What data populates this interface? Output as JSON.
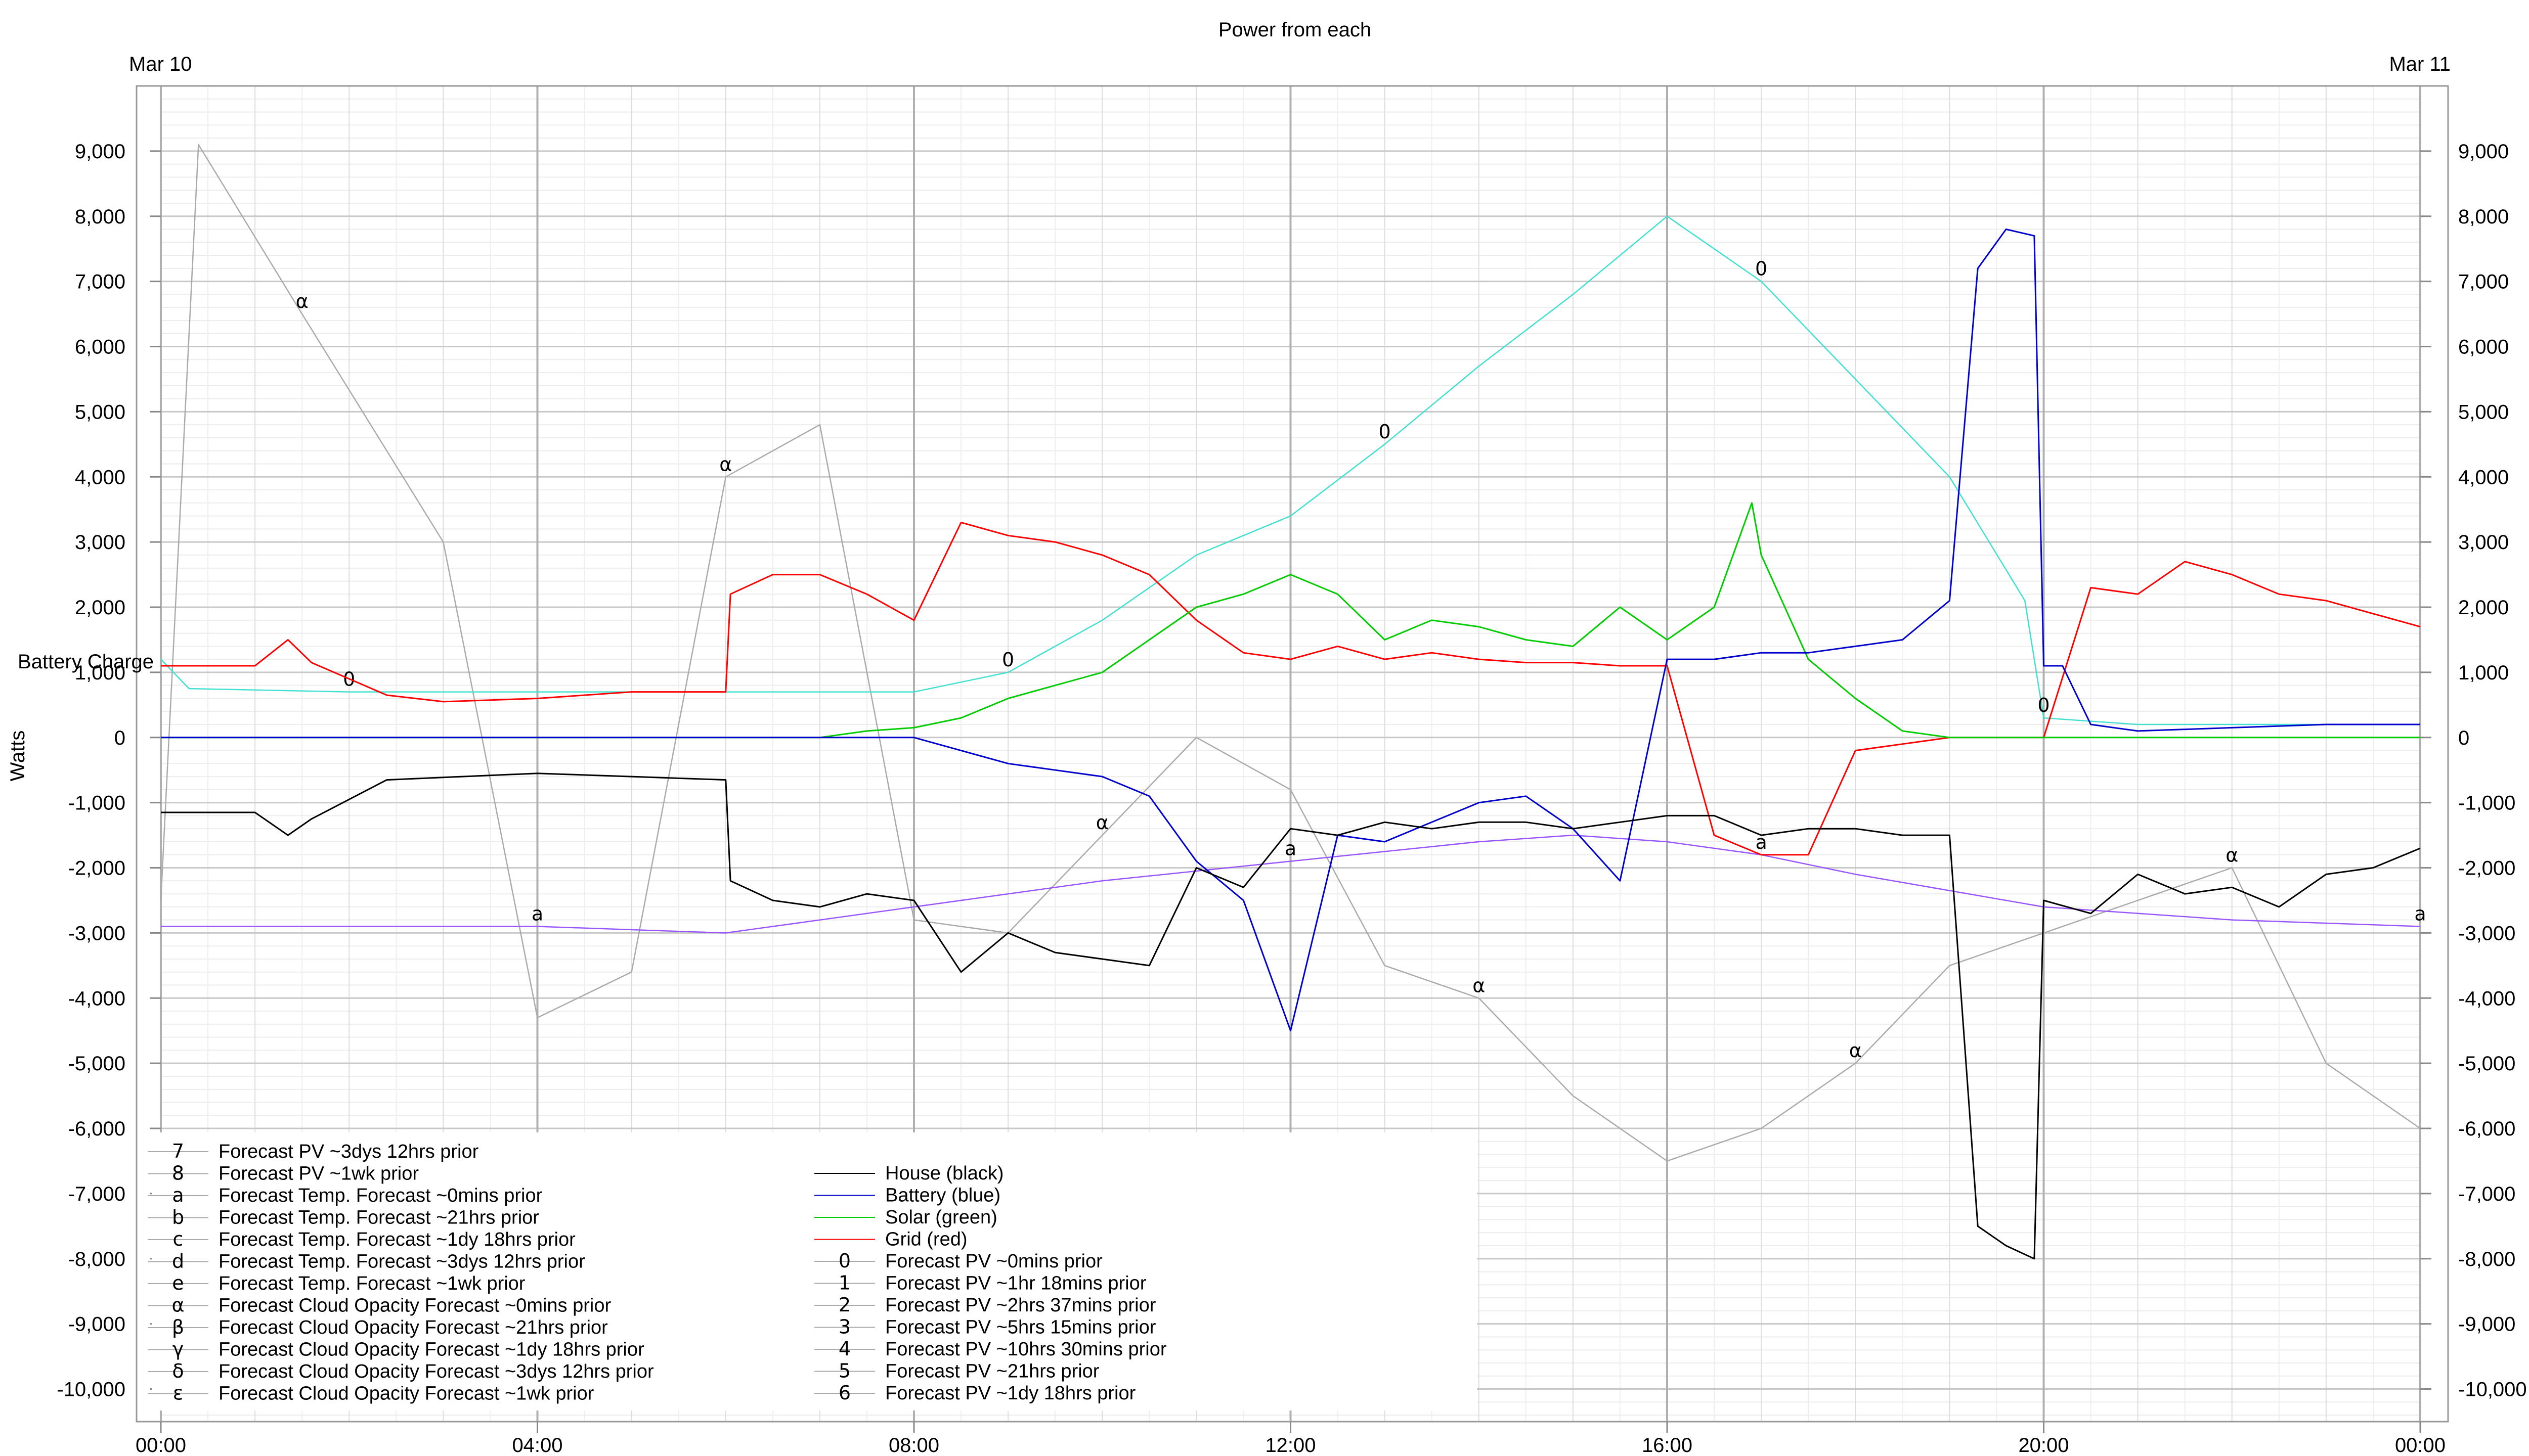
{
  "chart_data": {
    "type": "line",
    "title": "Power from each",
    "ylabel": "Watts",
    "secondary_ylabel": "Battery Charge",
    "date_labels": {
      "start": "Mar 10",
      "end": "Mar 11"
    },
    "xlim": [
      0,
      24
    ],
    "ylim": [
      -10500,
      10000
    ],
    "grid": true,
    "legend_placement": "bottom-left",
    "x_ticks": [
      "00:00",
      "04:00",
      "08:00",
      "12:00",
      "16:00",
      "20:00",
      "00:00"
    ],
    "y_ticks": [
      "9,000",
      "8,000",
      "7,000",
      "6,000",
      "5,000",
      "4,000",
      "3,000",
      "2,000",
      "1,000",
      "0",
      "-1,000",
      "-2,000",
      "-3,000",
      "-4,000",
      "-5,000",
      "-6,000",
      "-7,000",
      "-8,000",
      "-9,000",
      "-10,000"
    ],
    "series": [
      {
        "name": "House (black)",
        "color": "#000000",
        "x": [
          0,
          1,
          1.35,
          1.6,
          2.4,
          3.2,
          4,
          5,
          6,
          6.05,
          6.5,
          7,
          7.5,
          8,
          8.5,
          9,
          9.5,
          10,
          10.5,
          11,
          11.5,
          12,
          12.5,
          13,
          13.5,
          14,
          14.5,
          15,
          15.5,
          16,
          16.5,
          17,
          17.5,
          18,
          18.5,
          19,
          19.3,
          19.6,
          19.9,
          20,
          20.5,
          21,
          21.5,
          22,
          22.5,
          23,
          23.5,
          24
        ],
        "y": [
          -1150,
          -1150,
          -1500,
          -1250,
          -650,
          -600,
          -550,
          -600,
          -650,
          -2200,
          -2500,
          -2600,
          -2400,
          -2500,
          -3600,
          -3000,
          -3300,
          -3400,
          -3500,
          -2000,
          -2300,
          -1400,
          -1500,
          -1300,
          -1400,
          -1300,
          -1300,
          -1400,
          -1300,
          -1200,
          -1200,
          -1500,
          -1400,
          -1400,
          -1500,
          -1500,
          -7500,
          -7800,
          -8000,
          -2500,
          -2700,
          -2100,
          -2400,
          -2300,
          -2600,
          -2100,
          -2000,
          -1700
        ]
      },
      {
        "name": "Battery (blue)",
        "color": "#0000cc",
        "x": [
          0,
          7,
          8,
          8.5,
          9,
          9.5,
          10,
          10.5,
          11,
          11.5,
          12,
          12.5,
          13,
          13.5,
          14,
          14.5,
          15,
          15.5,
          16,
          16.5,
          17,
          17.5,
          18,
          18.5,
          19,
          19.3,
          19.6,
          19.9,
          20,
          20.2,
          20.5,
          21,
          22,
          23,
          24
        ],
        "y": [
          0,
          0,
          0,
          -200,
          -400,
          -500,
          -600,
          -900,
          -1900,
          -2500,
          -4500,
          -1500,
          -1600,
          -1300,
          -1000,
          -900,
          -1400,
          -2200,
          1200,
          1200,
          1300,
          1300,
          1400,
          1500,
          2100,
          7200,
          7800,
          7700,
          1100,
          1100,
          200,
          100,
          150,
          200,
          200
        ]
      },
      {
        "name": "Solar (green)",
        "color": "#00cc00",
        "x": [
          0,
          7,
          7.5,
          8,
          8.5,
          9,
          9.5,
          10,
          10.5,
          11,
          11.5,
          12,
          12.5,
          13,
          13.5,
          14,
          14.5,
          15,
          15.5,
          16,
          16.5,
          16.9,
          17,
          17.5,
          18,
          18.5,
          19,
          20,
          24
        ],
        "y": [
          0,
          0,
          100,
          150,
          300,
          600,
          800,
          1000,
          1500,
          2000,
          2200,
          2500,
          2200,
          1500,
          1800,
          1700,
          1500,
          1400,
          2000,
          1500,
          2000,
          3600,
          2800,
          1200,
          600,
          100,
          0,
          0,
          0
        ]
      },
      {
        "name": "Grid (red)",
        "color": "#ff0000",
        "x": [
          0,
          1,
          1.35,
          1.6,
          2.4,
          3,
          4,
          5,
          6,
          6.05,
          6.5,
          7,
          7.5,
          8,
          8.5,
          9,
          9.5,
          10,
          10.5,
          11,
          11.5,
          12,
          12.5,
          13,
          13.5,
          14,
          14.5,
          15,
          15.5,
          16,
          16.5,
          17,
          17.5,
          18,
          18.5,
          19,
          20,
          20.5,
          21,
          21.5,
          22,
          22.5,
          23,
          23.5,
          24
        ],
        "y": [
          1100,
          1100,
          1500,
          1150,
          650,
          550,
          600,
          700,
          700,
          2200,
          2500,
          2500,
          2200,
          1800,
          3300,
          3100,
          3000,
          2800,
          2500,
          1800,
          1300,
          1200,
          1400,
          1200,
          1300,
          1200,
          1150,
          1150,
          1100,
          1100,
          -1500,
          -1800,
          -1800,
          -200,
          -100,
          0,
          0,
          2300,
          2200,
          2700,
          2500,
          2200,
          2100,
          1900,
          1700
        ]
      },
      {
        "name": "Forecast PV ~0mins prior",
        "color": "#40e0d0",
        "marker": "0",
        "x": [
          0,
          0.3,
          2,
          4,
          6,
          8,
          9,
          10,
          11,
          12,
          13,
          14,
          15,
          16,
          17,
          18,
          19,
          19.8,
          20,
          21,
          24
        ],
        "y": [
          1200,
          750,
          700,
          700,
          700,
          700,
          1000,
          1800,
          2800,
          3400,
          4500,
          5700,
          6800,
          8000,
          7000,
          5500,
          4000,
          2100,
          300,
          200,
          200
        ]
      },
      {
        "name": "Forecast Temp. Forecast ~0mins prior",
        "color": "#9955ff",
        "marker": "a",
        "x": [
          0,
          2,
          4,
          6,
          8,
          10,
          12,
          14,
          15,
          16,
          17,
          18,
          20,
          22,
          24
        ],
        "y": [
          -2900,
          -2900,
          -2900,
          -3000,
          -2600,
          -2200,
          -1900,
          -1600,
          -1500,
          -1600,
          -1800,
          -2100,
          -2600,
          -2800,
          -2900
        ]
      },
      {
        "name": "Forecast Cloud Opacity Forecast ~0mins prior",
        "color": "#aaaaaa",
        "marker": "α",
        "x": [
          0,
          0.4,
          1.5,
          3,
          4,
          5,
          6,
          7,
          8,
          9,
          10,
          11,
          12,
          13,
          14,
          15,
          16,
          17,
          18,
          19,
          20,
          21,
          22,
          23,
          24
        ],
        "y": [
          -2500,
          9100,
          6500,
          3000,
          -4300,
          -3600,
          4000,
          4800,
          -2800,
          -3000,
          -1500,
          0,
          -800,
          -3500,
          -4000,
          -5500,
          -6500,
          -6000,
          -5000,
          -3500,
          -3000,
          -2500,
          -2000,
          -5000,
          -6000
        ]
      },
      {
        "name": "Forecast PV ~1hr 18mins prior",
        "color": "#ff9999",
        "marker": "1",
        "x": [],
        "y": []
      },
      {
        "name": "Forecast PV ~2hrs 37mins prior",
        "color": "#ffaa55",
        "marker": "2",
        "x": [],
        "y": []
      },
      {
        "name": "Forecast PV ~5hrs 15mins prior",
        "color": "#ddcc55",
        "marker": "3",
        "x": [],
        "y": []
      },
      {
        "name": "Forecast PV ~10hrs 30mins prior",
        "color": "#99dd99",
        "marker": "4",
        "x": [],
        "y": []
      },
      {
        "name": "Forecast PV ~21hrs prior",
        "color": "#99bbff",
        "marker": "5",
        "x": [],
        "y": []
      },
      {
        "name": "Forecast PV ~1dy 18hrs prior",
        "color": "#dd99ff",
        "marker": "6",
        "x": [],
        "y": []
      },
      {
        "name": "Forecast PV ~3dys 12hrs prior",
        "color": "#bbbbbb",
        "marker": "7",
        "x": [],
        "y": []
      },
      {
        "name": "Forecast PV ~1wk prior",
        "color": "#999999",
        "marker": "8",
        "x": [],
        "y": []
      },
      {
        "name": "Forecast Temp. Forecast ~21hrs prior",
        "color": "#bb88ff",
        "marker": "b",
        "x": [],
        "y": []
      },
      {
        "name": "Forecast Temp. Forecast ~1dy 18hrs prior",
        "color": "#cc99ff",
        "marker": "c",
        "x": [],
        "y": []
      },
      {
        "name": "Forecast Temp. Forecast ~3dys 12hrs prior",
        "color": "#ccbbee",
        "marker": "d",
        "x": [],
        "y": []
      },
      {
        "name": "Forecast Temp. Forecast ~1wk prior",
        "color": "#ddccee",
        "marker": "e",
        "x": [],
        "y": []
      },
      {
        "name": "Forecast Cloud Opacity Forecast ~21hrs prior",
        "color": "#bbbbbb",
        "marker": "β",
        "x": [],
        "y": []
      },
      {
        "name": "Forecast Cloud Opacity Forecast ~1dy 18hrs prior",
        "color": "#cccccc",
        "marker": "γ",
        "x": [],
        "y": []
      },
      {
        "name": "Forecast Cloud Opacity Forecast ~3dys 12hrs prior",
        "color": "#dddddd",
        "marker": "δ",
        "x": [],
        "y": []
      },
      {
        "name": "Forecast Cloud Opacity Forecast ~1wk prior",
        "color": "#e5e5e5",
        "marker": "ε",
        "x": [],
        "y": []
      }
    ],
    "legend_left": [
      {
        "mark": "7",
        "label": "Forecast PV ~3dys 12hrs prior"
      },
      {
        "mark": "8",
        "label": "Forecast PV ~1wk prior"
      },
      {
        "mark": "a",
        "label": "Forecast Temp. Forecast ~0mins prior"
      },
      {
        "mark": "b",
        "label": "Forecast Temp. Forecast ~21hrs prior"
      },
      {
        "mark": "c",
        "label": "Forecast Temp. Forecast ~1dy 18hrs prior"
      },
      {
        "mark": "d",
        "label": "Forecast Temp. Forecast ~3dys 12hrs prior"
      },
      {
        "mark": "e",
        "label": "Forecast Temp. Forecast ~1wk prior"
      },
      {
        "mark": "α",
        "label": "Forecast Cloud Opacity Forecast ~0mins prior"
      },
      {
        "mark": "β",
        "label": "Forecast Cloud Opacity Forecast ~21hrs prior"
      },
      {
        "mark": "γ",
        "label": "Forecast Cloud Opacity Forecast ~1dy 18hrs prior"
      },
      {
        "mark": "δ",
        "label": "Forecast Cloud Opacity Forecast ~3dys 12hrs prior"
      },
      {
        "mark": "ε",
        "label": "Forecast Cloud Opacity Forecast ~1wk prior"
      }
    ],
    "legend_right": [
      {
        "mark": "",
        "label": "House (black)",
        "color": "#000000"
      },
      {
        "mark": "",
        "label": "Battery (blue)",
        "color": "#0000cc"
      },
      {
        "mark": "",
        "label": "Solar (green)",
        "color": "#00cc00"
      },
      {
        "mark": "",
        "label": "Grid (red)",
        "color": "#ff0000"
      },
      {
        "mark": "0",
        "label": "Forecast PV ~0mins prior"
      },
      {
        "mark": "1",
        "label": "Forecast PV ~1hr 18mins prior"
      },
      {
        "mark": "2",
        "label": "Forecast PV ~2hrs 37mins prior"
      },
      {
        "mark": "3",
        "label": "Forecast PV ~5hrs 15mins prior"
      },
      {
        "mark": "4",
        "label": "Forecast PV ~10hrs 30mins prior"
      },
      {
        "mark": "5",
        "label": "Forecast PV ~21hrs prior"
      },
      {
        "mark": "6",
        "label": "Forecast PV ~1dy 18hrs prior"
      }
    ]
  }
}
